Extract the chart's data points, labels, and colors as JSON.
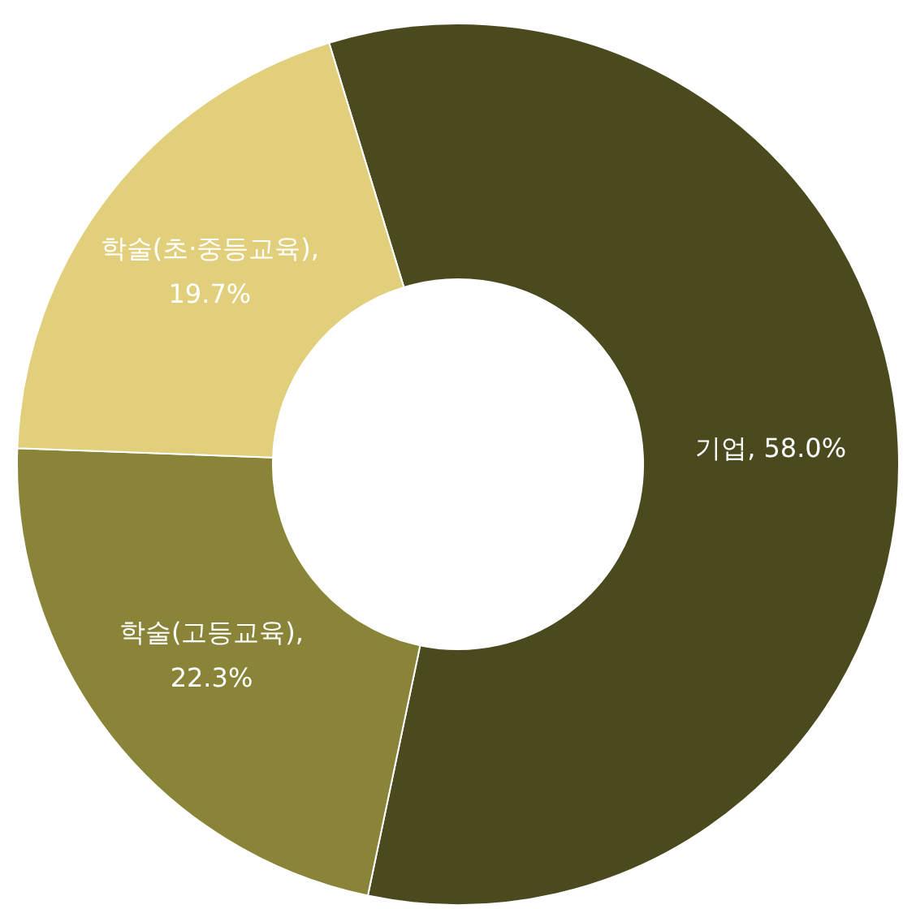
{
  "chart_data": {
    "type": "donut",
    "categories": [
      "기업",
      "학술(고등교육)",
      "학술(초·중등교육)"
    ],
    "values": [
      58.0,
      22.3,
      19.7
    ],
    "value_labels": [
      ", 58.0%",
      ", 22.3%",
      ", 19.7%"
    ],
    "colors": [
      "#4b4a1f",
      "#8a8438",
      "#e1cf7c"
    ],
    "legend": false
  }
}
